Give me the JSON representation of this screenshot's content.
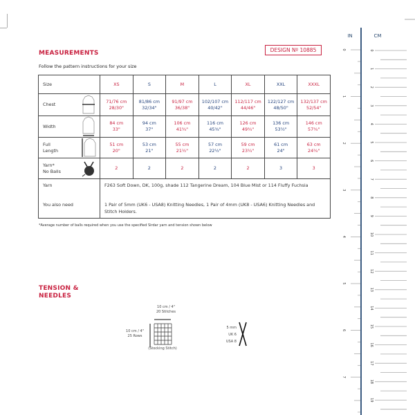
{
  "design_label": "DESIGN Nº 10885",
  "measurements": {
    "title": "MEASUREMENTS",
    "intro": "Follow the pattern instructions for your size",
    "size_label": "Size",
    "sizes": [
      "XS",
      "S",
      "M",
      "L",
      "XL",
      "XXL",
      "XXXL"
    ],
    "rows": [
      {
        "label": [
          "Chest"
        ],
        "icon": "chest-width-icon",
        "cm": [
          "71/76 cm",
          "81/86 cm",
          "91/97 cm",
          "102/107 cm",
          "112/117 cm",
          "122/127 cm",
          "132/137 cm"
        ],
        "in": [
          "28/30\"",
          "32/34\"",
          "36/38\"",
          "40/42\"",
          "44/46\"",
          "48/50\"",
          "52/54\""
        ]
      },
      {
        "label": [
          "Width"
        ],
        "icon": "hem-width-icon",
        "cm": [
          "84 cm",
          "94 cm",
          "106 cm",
          "116 cm",
          "126 cm",
          "136 cm",
          "146 cm"
        ],
        "in": [
          "33\"",
          "37\"",
          "41¾\"",
          "45¾\"",
          "49¾\"",
          "53½\"",
          "57¾\""
        ]
      },
      {
        "label": [
          "Full",
          "Length"
        ],
        "icon": "length-icon",
        "cm": [
          "51 cm",
          "53 cm",
          "55 cm",
          "57 cm",
          "59 cm",
          "61 cm",
          "63 cm"
        ],
        "in": [
          "20\"",
          "21\"",
          "21½\"",
          "22½\"",
          "23¼\"",
          "24\"",
          "24¾\""
        ]
      }
    ],
    "yarn_balls": {
      "label": [
        "Yarn*",
        "No Balls"
      ],
      "icon": "yarn-ball-icon",
      "values": [
        "2",
        "2",
        "2",
        "2",
        "2",
        "3",
        "3"
      ]
    },
    "yarn_label": "Yarn",
    "yarn_text": "F263 Soft Down, DK, 100g, shade 112 Tangerine Dream, 104 Blue Mist or 114 Fluffy Fuchsia",
    "also_label": "You also need",
    "also_text": "1 Pair of 5mm (UK6 - USA8) Knitting Needles, 1 Pair of 4mm (UK8 - USA6) Knitting Needles and Stitch Holders.",
    "note": "*Average number of balls required when you use the specified Sirdar yarn and tension shown below",
    "colors": {
      "accent": "#c8203f",
      "blue": "#1f3f7a"
    }
  },
  "tension": {
    "title": [
      "TENSION &",
      "NEEDLES"
    ],
    "stitches": [
      "10 cm / 4\"",
      "20 Stitches"
    ],
    "rows": [
      "10 cm / 4\"",
      "25 Rows"
    ],
    "stitch_type": "(Stocking Stitch)",
    "needle": [
      "5 mm",
      "UK 6",
      "USA 8"
    ]
  },
  "ruler": {
    "in_label": "IN",
    "cm_label": "CM",
    "inches": [
      "0",
      "1",
      "2",
      "3",
      "4",
      "5",
      "6",
      "7"
    ],
    "cms": [
      "0",
      "1",
      "2",
      "3",
      "4",
      "5",
      "6",
      "7",
      "8",
      "9",
      "10",
      "11",
      "12",
      "13",
      "14",
      "15",
      "16",
      "17",
      "18",
      "19"
    ]
  }
}
